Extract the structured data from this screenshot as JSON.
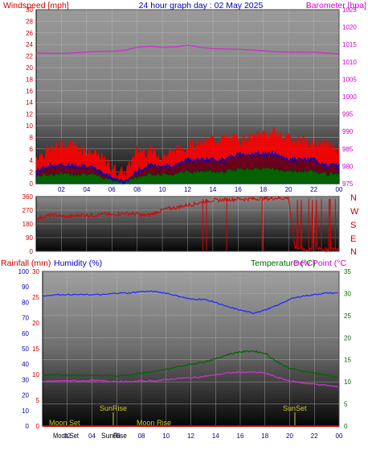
{
  "header": {
    "left": "Windspeed [mph]",
    "center": "24 hour graph day : 02 May 2025",
    "right": "Barometer [hpa]"
  },
  "wind_direction": {
    "labels": [
      "N",
      "W",
      "S",
      "E",
      "N"
    ]
  },
  "bottom_header": {
    "rain": "Rainfall (mm)",
    "humidity": "Humidity (%)",
    "temperature": "Temperature (°C)",
    "dewpoint": "Dew Point (°C"
  },
  "events": {
    "sunrise": "SunRise",
    "sunset": "SunSet",
    "moonset": "Moon Set",
    "moonrise": "Moon Rise"
  },
  "colors": {
    "wind": "#ff0000",
    "gust_fill": "#ff0000",
    "avg_wind": "#0000cc",
    "calm": "#006600",
    "barometer": "#cc33cc",
    "humidity": "#2a2aff",
    "temperature": "#006600",
    "dewpoint": "#cc33cc",
    "rain": "#cc0000",
    "event_line": "#aaaa00"
  },
  "chart_data": [
    {
      "type": "line",
      "title": "24 hour graph day : 02 May 2025",
      "ylabel": "Windspeed [mph]",
      "y2label": "Barometer [hpa]",
      "ylim": [
        0,
        30
      ],
      "y2lim": [
        975,
        1025
      ],
      "yticks": [
        "0",
        "2",
        "4",
        "6",
        "8",
        "10",
        "12",
        "14",
        "16",
        "18",
        "20",
        "22",
        "24",
        "26",
        "28",
        "30"
      ],
      "y2ticks": [
        "975",
        "980",
        "985",
        "990",
        "995",
        "1000",
        "1005",
        "1010",
        "1015",
        "1020",
        "1025"
      ],
      "xticks": [
        "02",
        "04",
        "06",
        "08",
        "10",
        "12",
        "14",
        "16",
        "18",
        "20",
        "22",
        "00"
      ],
      "x": [
        0,
        1,
        2,
        3,
        4,
        5,
        6,
        7,
        8,
        9,
        10,
        11,
        12,
        13,
        14,
        15,
        16,
        17,
        18,
        19,
        20,
        21,
        22,
        23,
        24
      ],
      "series": [
        {
          "name": "Gust",
          "values": [
            4,
            5,
            6,
            6,
            5,
            4,
            2,
            1,
            5,
            5,
            4,
            5,
            6,
            6,
            7,
            7,
            7,
            7,
            8,
            8,
            7,
            7,
            6,
            6,
            5
          ]
        },
        {
          "name": "Wind",
          "values": [
            2,
            3,
            3,
            3,
            3,
            2,
            1,
            0,
            2,
            3,
            3,
            3,
            4,
            4,
            4,
            4,
            5,
            5,
            5,
            5,
            4,
            4,
            4,
            3,
            3
          ]
        },
        {
          "name": "Barometer",
          "values": [
            1012.5,
            1012.5,
            1012.4,
            1012.6,
            1012.8,
            1013.0,
            1013.0,
            1013.3,
            1014.2,
            1014.5,
            1014.2,
            1014.3,
            1014.8,
            1014.2,
            1013.8,
            1013.7,
            1013.6,
            1013.4,
            1013.2,
            1012.9,
            1012.8,
            1012.8,
            1012.8,
            1012.5,
            1012.3
          ]
        }
      ]
    },
    {
      "type": "scatter",
      "ylabel": "Wind direction",
      "ylim": [
        0,
        360
      ],
      "yticks": [
        "0",
        "90",
        "180",
        "270",
        "360"
      ],
      "x": [
        0,
        0.5,
        1,
        1.5,
        2,
        2.5,
        3,
        3.5,
        4,
        4.5,
        5,
        5.5,
        6,
        6.5,
        7,
        7.5,
        8,
        8.5,
        9,
        9.5,
        10,
        10.5,
        11,
        11.5,
        12,
        12.5,
        13,
        13.5,
        14,
        14.5,
        15,
        15.5,
        16,
        16.5,
        17,
        17.5,
        18,
        18.5,
        19,
        19.5,
        20,
        20.5,
        21,
        21.5,
        22,
        22.5,
        23,
        23.5,
        24
      ],
      "values": [
        215,
        225,
        235,
        240,
        230,
        228,
        232,
        240,
        238,
        236,
        242,
        245,
        238,
        245,
        250,
        248,
        245,
        235,
        240,
        255,
        270,
        280,
        285,
        295,
        305,
        310,
        320,
        330,
        335,
        335,
        340,
        340,
        345,
        342,
        345,
        345,
        348,
        345,
        350,
        348,
        350,
        20,
        15,
        10,
        15,
        20,
        10,
        15,
        20
      ]
    },
    {
      "type": "line",
      "ylabel": "Humidity (%)",
      "y2label": "Temperature (°C)",
      "ylim": [
        0,
        100
      ],
      "y2lim": [
        0,
        35
      ],
      "yticks_humidity": [
        "0",
        "10",
        "20",
        "30",
        "40",
        "50",
        "60",
        "70",
        "80",
        "90",
        "100"
      ],
      "yticks_rain": [
        "0",
        "5",
        "10",
        "15",
        "20",
        "25",
        "30"
      ],
      "yticks_temp": [
        "0",
        "5",
        "10",
        "15",
        "20",
        "25",
        "30",
        "35"
      ],
      "xticks": [
        "02",
        "04",
        "06",
        "08",
        "10",
        "12",
        "14",
        "16",
        "18",
        "20",
        "22",
        "00"
      ],
      "x": [
        0,
        1,
        2,
        3,
        4,
        5,
        6,
        7,
        8,
        9,
        10,
        11,
        12,
        13,
        14,
        15,
        16,
        17,
        18,
        19,
        20,
        21,
        22,
        23,
        24
      ],
      "series": [
        {
          "name": "Humidity",
          "values": [
            84,
            85,
            85,
            85,
            85,
            85,
            86,
            86,
            87,
            87,
            86,
            84,
            82,
            82,
            80,
            77,
            75,
            73,
            75,
            78,
            82,
            84,
            85,
            86,
            86
          ]
        },
        {
          "name": "Temperature",
          "values": [
            11.5,
            11.5,
            11.6,
            11.5,
            11.5,
            11.4,
            11.4,
            11.6,
            12.0,
            12.3,
            12.8,
            13.5,
            14.0,
            14.5,
            15.2,
            16.2,
            16.8,
            17.0,
            16.5,
            14.5,
            13.0,
            12.5,
            12.0,
            11.5,
            11.0
          ]
        },
        {
          "name": "Dew Point",
          "values": [
            10.0,
            10.2,
            10.3,
            10.2,
            10.3,
            10.2,
            10.1,
            10.0,
            10.2,
            10.2,
            10.5,
            10.8,
            10.9,
            11.2,
            11.6,
            12.0,
            12.2,
            12.2,
            12.0,
            11.0,
            10.2,
            9.8,
            9.5,
            9.2,
            8.8
          ]
        },
        {
          "name": "Rainfall",
          "values": [
            0,
            0,
            0,
            0,
            0,
            0,
            0,
            0,
            0,
            0,
            0,
            0,
            0,
            0,
            0,
            0,
            0,
            0,
            0,
            0,
            0,
            0,
            0,
            0,
            0
          ]
        }
      ]
    }
  ]
}
